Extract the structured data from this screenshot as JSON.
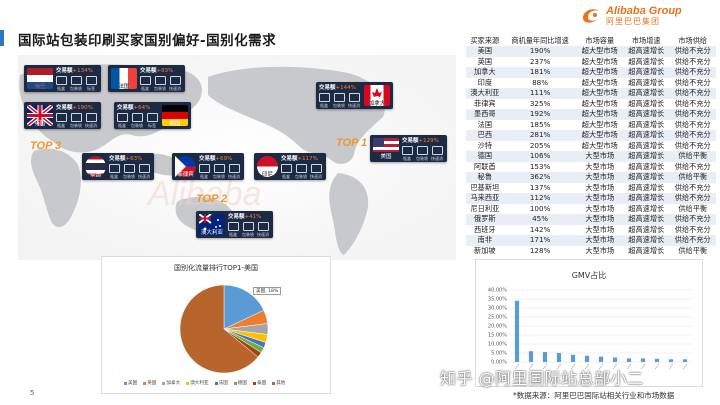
{
  "title": "国际站包装印刷买家国别偏好-国别化需求",
  "logo": {
    "en": "Alibaba Group",
    "cn": "阿里巴巴集团"
  },
  "map": {
    "trade_prefix": "交易额",
    "cards": [
      {
        "country": "荷兰",
        "trade": "+134%",
        "icons": [
          "瓶盒",
          "包装袋",
          "标签"
        ],
        "flag": "nl"
      },
      {
        "country": "法国",
        "trade": "+83%",
        "icons": [
          "瓶盒",
          "包装袋",
          "快速消"
        ],
        "flag": "fr"
      },
      {
        "country": "英国",
        "trade": "+190%",
        "icons": [
          "瓶盒",
          "包装袋",
          "快速消"
        ],
        "flag": "gb"
      },
      {
        "country": "德国",
        "trade": "+64%",
        "icons": [
          "瓶盒",
          "包装袋",
          "标签"
        ],
        "flag": "de"
      },
      {
        "country": "加拿大",
        "trade": "+144%",
        "icons": [
          "瓶盒",
          "包装袋",
          "快速消"
        ],
        "flag": "ca"
      },
      {
        "country": "美国",
        "trade": "+129%",
        "icons": [
          "瓶盒",
          "包装袋",
          "快速消"
        ],
        "flag": "us"
      },
      {
        "country": "泰国",
        "trade": "+63%",
        "icons": [
          "瓶盒",
          "包装袋",
          "快速消"
        ],
        "flag": "th"
      },
      {
        "country": "菲律宾",
        "trade": "+69%",
        "icons": [
          "瓶盒",
          "包装袋",
          "快速消"
        ],
        "flag": "ph"
      },
      {
        "country": "印尼",
        "trade": "+117%",
        "icons": [
          "瓶盒",
          "包装袋",
          "快速消"
        ],
        "flag": "id"
      },
      {
        "country": "澳大利亚",
        "trade": "+41%",
        "icons": [
          "瓶盒",
          "包装袋",
          "快速消"
        ],
        "flag": "au"
      }
    ],
    "top_labels": [
      "TOP 3",
      "TOP 1",
      "TOP 2"
    ]
  },
  "table": {
    "headers": [
      "买家来源",
      "商机量年同比增速",
      "市场容量",
      "市场增速",
      "市场供给"
    ],
    "rows": [
      [
        "美国",
        "190%",
        "超大型市场",
        "超高速增长",
        "供给不充分"
      ],
      [
        "英国",
        "237%",
        "超大型市场",
        "超高速增长",
        "供给不充分"
      ],
      [
        "加拿大",
        "181%",
        "超大型市场",
        "超高速增长",
        "供给不充分"
      ],
      [
        "印度",
        "88%",
        "超大型市场",
        "超高速增长",
        "供给不充分"
      ],
      [
        "澳大利亚",
        "111%",
        "超大型市场",
        "超高速增长",
        "供给不充分"
      ],
      [
        "菲律宾",
        "325%",
        "超大型市场",
        "超高速增长",
        "供给不充分"
      ],
      [
        "墨西哥",
        "192%",
        "超大型市场",
        "超高速增长",
        "供给不充分"
      ],
      [
        "法国",
        "185%",
        "超大型市场",
        "超高速增长",
        "供给不充分"
      ],
      [
        "巴西",
        "281%",
        "超大型市场",
        "超高速增长",
        "供给不充分"
      ],
      [
        "沙特",
        "205%",
        "超大型市场",
        "超高速增长",
        "供给不充分"
      ],
      [
        "德国",
        "106%",
        "大型市场",
        "超高速增长",
        "供给平衡"
      ],
      [
        "阿联酋",
        "153%",
        "大型市场",
        "超高速增长",
        "供给不充分"
      ],
      [
        "秘鲁",
        "362%",
        "大型市场",
        "超高速增长",
        "供给平衡"
      ],
      [
        "巴基斯坦",
        "137%",
        "大型市场",
        "超高速增长",
        "供给不充分"
      ],
      [
        "马来西亚",
        "112%",
        "大型市场",
        "超高速增长",
        "供给不充分"
      ],
      [
        "尼日利亚",
        "100%",
        "大型市场",
        "超高速增长",
        "供给平衡"
      ],
      [
        "俄罗斯",
        "45%",
        "大型市场",
        "超高速增长",
        "供给不充分"
      ],
      [
        "西班牙",
        "142%",
        "大型市场",
        "超高速增长",
        "供给不充分"
      ],
      [
        "南非",
        "171%",
        "大型市场",
        "超高速增长",
        "供给不充分"
      ],
      [
        "新加坡",
        "128%",
        "大型市场",
        "超高速增长",
        "供给平衡"
      ]
    ]
  },
  "chart_data": [
    {
      "type": "pie",
      "title": "国别化流量排行TOP1-美国",
      "callout": "美国, 18%",
      "categories": [
        "美国",
        "英国",
        "加拿大",
        "澳大利亚",
        "法国",
        "德国",
        "泰国",
        "其他"
      ],
      "values": [
        18,
        5,
        4,
        3,
        2,
        2,
        2,
        64
      ],
      "colors": [
        "#5b9bd5",
        "#ed7d31",
        "#a5a5a5",
        "#ffc000",
        "#4472c4",
        "#70ad47",
        "#9e480e",
        "#b8652d"
      ],
      "legend": [
        "美国",
        "英国",
        "加拿大",
        "澳大利亚",
        "法国",
        "德国",
        "泰国",
        "其他"
      ]
    },
    {
      "type": "bar",
      "title": "GMV占比",
      "ylim": [
        0,
        40
      ],
      "yticks": [
        "0.00%",
        "5.00%",
        "10.00%",
        "15.00%",
        "20.00%",
        "25.00%",
        "30.00%",
        "35.00%",
        "40.00%"
      ],
      "values": [
        34,
        6,
        5.5,
        5,
        4,
        3.5,
        3,
        2.5,
        2,
        2,
        1.8,
        1.5,
        1.5
      ],
      "color": "#5b9bd5"
    }
  ],
  "footer": {
    "page": "5",
    "watermark": "知乎 @阿里国际站总部小二",
    "source": "*数据来源：阿里巴巴国际站相关行业和市场数据"
  }
}
